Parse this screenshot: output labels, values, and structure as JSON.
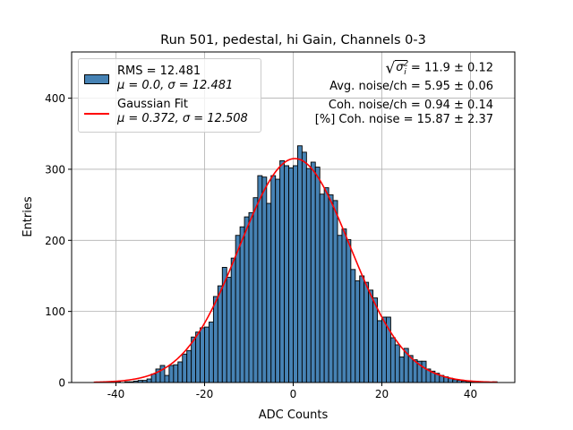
{
  "chart_data": {
    "type": "bar",
    "title": "Run 501, pedestal, hi Gain, Channels 0-3",
    "xlabel": "ADC Counts",
    "ylabel": "Entries",
    "xlim": [
      -50,
      50
    ],
    "ylim": [
      0,
      465
    ],
    "xticks": [
      -40,
      -20,
      0,
      20,
      40
    ],
    "yticks": [
      0,
      100,
      200,
      300,
      400
    ],
    "grid": true,
    "legend_placement": "upper-left",
    "histogram": {
      "x_start": -45,
      "bin_width": 1,
      "counts": [
        0,
        0,
        0,
        0,
        0,
        1,
        0,
        1,
        1,
        2,
        3,
        3,
        5,
        12,
        19,
        24,
        10,
        24,
        25,
        29,
        40,
        45,
        64,
        71,
        77,
        78,
        85,
        121,
        136,
        162,
        148,
        175,
        207,
        219,
        233,
        239,
        260,
        291,
        289,
        252,
        291,
        286,
        312,
        305,
        302,
        305,
        333,
        324,
        301,
        310,
        303,
        265,
        274,
        264,
        256,
        207,
        216,
        201,
        159,
        143,
        150,
        141,
        130,
        119,
        87,
        92,
        92,
        63,
        53,
        36,
        48,
        38,
        32,
        30,
        30,
        19,
        16,
        13,
        10,
        8,
        6,
        4,
        3,
        2,
        1,
        1,
        1,
        0,
        1,
        0,
        1
      ],
      "color": "#4682b4",
      "edgecolor": "#000000"
    },
    "fit": {
      "type": "gaussian",
      "mu": 0.372,
      "sigma": 12.508,
      "amplitude": 315,
      "x_range": [
        -45,
        46
      ],
      "color": "#ff0000"
    },
    "legend": [
      {
        "line1": "RMS = 12.481",
        "line2": "μ = 0.0, σ = 12.481"
      },
      {
        "line1": "Gaussian Fit",
        "line2": "μ = 0.372, σ = 12.508"
      }
    ],
    "annotations": {
      "sigma_symbol": "σ",
      "sigma_sub": "i",
      "sigma_sup": "2",
      "sigma_value": " = 11.9 ± 0.12",
      "avg_noise": "Avg. noise/ch = 5.95 ± 0.06",
      "coh_noise": "Coh. noise/ch = 0.94 ± 0.14",
      "coh_pct": "[%] Coh. noise = 15.87 ± 2.37"
    }
  }
}
